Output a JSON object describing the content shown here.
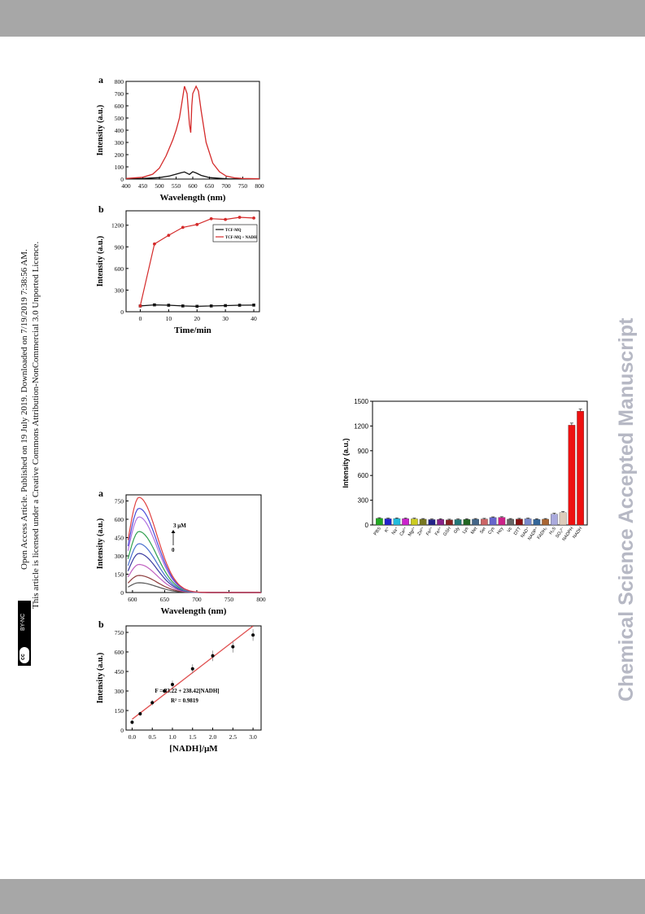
{
  "page": {
    "license_line_1": "Open Access Article. Published on 19 July 2019. Downloaded on 7/19/2019 7:38:56 AM.",
    "license_line_2": "This article is licensed under a Creative Commons Attribution-NonCommercial 3.0 Unported Licence.",
    "cc_badge_cc": "cc",
    "cc_badge_text": "BY-NC",
    "watermark": "Chemical Science Accepted Manuscript"
  },
  "chart_data": [
    {
      "id": "fig1a",
      "type": "line",
      "panel_label": "a",
      "xlabel": "Wavelength (nm)",
      "ylabel": "Intensity (a.u.)",
      "xlim": [
        400,
        800
      ],
      "ylim": [
        0,
        800
      ],
      "xticks": [
        400,
        450,
        500,
        550,
        600,
        650,
        700,
        750,
        800
      ],
      "yticks": [
        0,
        100,
        200,
        300,
        400,
        500,
        600,
        700,
        800
      ],
      "series": [
        {
          "color": "#111111",
          "x": [
            400,
            450,
            500,
            530,
            550,
            565,
            575,
            585,
            590,
            600,
            610,
            625,
            650,
            700,
            800
          ],
          "y": [
            2,
            5,
            12,
            25,
            40,
            52,
            58,
            45,
            38,
            60,
            50,
            30,
            12,
            3,
            1
          ]
        },
        {
          "color": "#d42a2a",
          "x": [
            400,
            450,
            480,
            500,
            520,
            540,
            550,
            560,
            567,
            575,
            583,
            590,
            594,
            597,
            600,
            610,
            617,
            625,
            640,
            660,
            680,
            700,
            725,
            750,
            800
          ],
          "y": [
            5,
            15,
            40,
            90,
            190,
            320,
            400,
            500,
            620,
            760,
            700,
            450,
            380,
            600,
            700,
            760,
            720,
            560,
            300,
            130,
            60,
            25,
            10,
            5,
            2
          ]
        }
      ]
    },
    {
      "id": "fig1b",
      "type": "line",
      "panel_label": "b",
      "xlabel": "Time/min",
      "ylabel": "Intensity (a.u.)",
      "xlim": [
        -5,
        42
      ],
      "ylim": [
        0,
        1400
      ],
      "xticks": [
        0,
        10,
        20,
        30,
        40
      ],
      "yticks": [
        0,
        300,
        600,
        900,
        1200
      ],
      "legend": [
        "TCF-MQ",
        "TCF-MQ + NADH"
      ],
      "legend_position": "top-right",
      "series": [
        {
          "name": "TCF-MQ",
          "color": "#111111",
          "x": [
            0,
            5,
            10,
            15,
            20,
            25,
            30,
            35,
            40
          ],
          "y": [
            80,
            95,
            90,
            80,
            75,
            80,
            85,
            90,
            92
          ]
        },
        {
          "name": "TCF-MQ + NADH",
          "color": "#d42a2a",
          "x": [
            0,
            5,
            10,
            15,
            20,
            25,
            30,
            35,
            40
          ],
          "y": [
            80,
            940,
            1060,
            1170,
            1210,
            1290,
            1280,
            1310,
            1300
          ]
        }
      ]
    },
    {
      "id": "fig2a",
      "type": "line",
      "panel_label": "a",
      "xlabel": "Wavelength (nm)",
      "ylabel": "Intensity (a.u.)",
      "xlim": [
        590,
        800
      ],
      "ylim": [
        0,
        800
      ],
      "xticks": [
        600,
        650,
        700,
        750,
        800
      ],
      "yticks": [
        0,
        150,
        300,
        450,
        600,
        750
      ],
      "annotation_top": "3 μM",
      "annotation_bottom": "0",
      "peaks": [
        80,
        140,
        230,
        320,
        400,
        500,
        620,
        690,
        780
      ],
      "colors": [
        "#555555",
        "#8c3b3b",
        "#c060c0",
        "#3a3aa0",
        "#4a70d0",
        "#30a050",
        "#b070e0",
        "#4a4ad8",
        "#e04040"
      ]
    },
    {
      "id": "fig2b",
      "type": "scatter",
      "panel_label": "b",
      "xlabel": "[NADH]/μM",
      "ylabel": "Intensity (a.u.)",
      "xlim": [
        -0.15,
        3.2
      ],
      "ylim": [
        0,
        800
      ],
      "xticks": [
        0.0,
        0.5,
        1.0,
        1.5,
        2.0,
        2.5,
        3.0
      ],
      "xtick_labels": [
        "0.0",
        "0.5",
        "1.0",
        "1.5",
        "2.0",
        "2.5",
        "3.0"
      ],
      "yticks": [
        0,
        150,
        300,
        450,
        600,
        750
      ],
      "x": [
        0.0,
        0.2,
        0.5,
        0.8,
        1.0,
        1.5,
        2.0,
        2.5,
        3.0
      ],
      "y": [
        60,
        125,
        210,
        300,
        350,
        470,
        570,
        640,
        730
      ],
      "errors": [
        15,
        15,
        20,
        20,
        30,
        35,
        40,
        45,
        45
      ],
      "fit": {
        "intercept": 83.22,
        "slope": 238.42,
        "x_range": [
          0,
          3.0
        ],
        "color": "#e05050"
      },
      "equation": "F = 83.22 + 238.42[NADH]",
      "r2": "R² = 0.9819"
    },
    {
      "id": "fig3",
      "type": "bar",
      "ylabel": "Intensity (a.u.)",
      "ylim": [
        0,
        1500
      ],
      "yticks": [
        0,
        300,
        600,
        900,
        1200,
        1500
      ],
      "categories": [
        "PBS",
        "K⁺",
        "Na⁺",
        "Ca²⁺",
        "Mg²⁺",
        "Zn²⁺",
        "Fe²⁺",
        "Fe³⁺",
        "GSH",
        "Gly",
        "Lys",
        "Met",
        "Ser",
        "Cys",
        "Hcy",
        "Vc",
        "DTT",
        "NAD⁺",
        "NADP⁺",
        "FADH₂",
        "H₂S",
        "SO₃²⁻",
        "NADPH",
        "NADH"
      ],
      "values": [
        80,
        75,
        78,
        76,
        74,
        70,
        65,
        68,
        62,
        65,
        68,
        70,
        72,
        90,
        92,
        70,
        72,
        75,
        68,
        70,
        130,
        150,
        1210,
        1380
      ],
      "errors": [
        8,
        8,
        8,
        8,
        8,
        8,
        8,
        8,
        8,
        8,
        8,
        8,
        8,
        8,
        8,
        8,
        8,
        8,
        8,
        8,
        12,
        12,
        25,
        25
      ],
      "colors": [
        "#22aa22",
        "#2222cc",
        "#22bbdd",
        "#cc22cc",
        "#cccc22",
        "#777722",
        "#222288",
        "#882288",
        "#882222",
        "#227777",
        "#226622",
        "#446688",
        "#cc6666",
        "#6666cc",
        "#cc2288",
        "#666666",
        "#881111",
        "#7788cc",
        "#336699",
        "#aa6633",
        "#aaaadd",
        "#ddccbb",
        "#ee1111",
        "#ee1111"
      ]
    }
  ]
}
